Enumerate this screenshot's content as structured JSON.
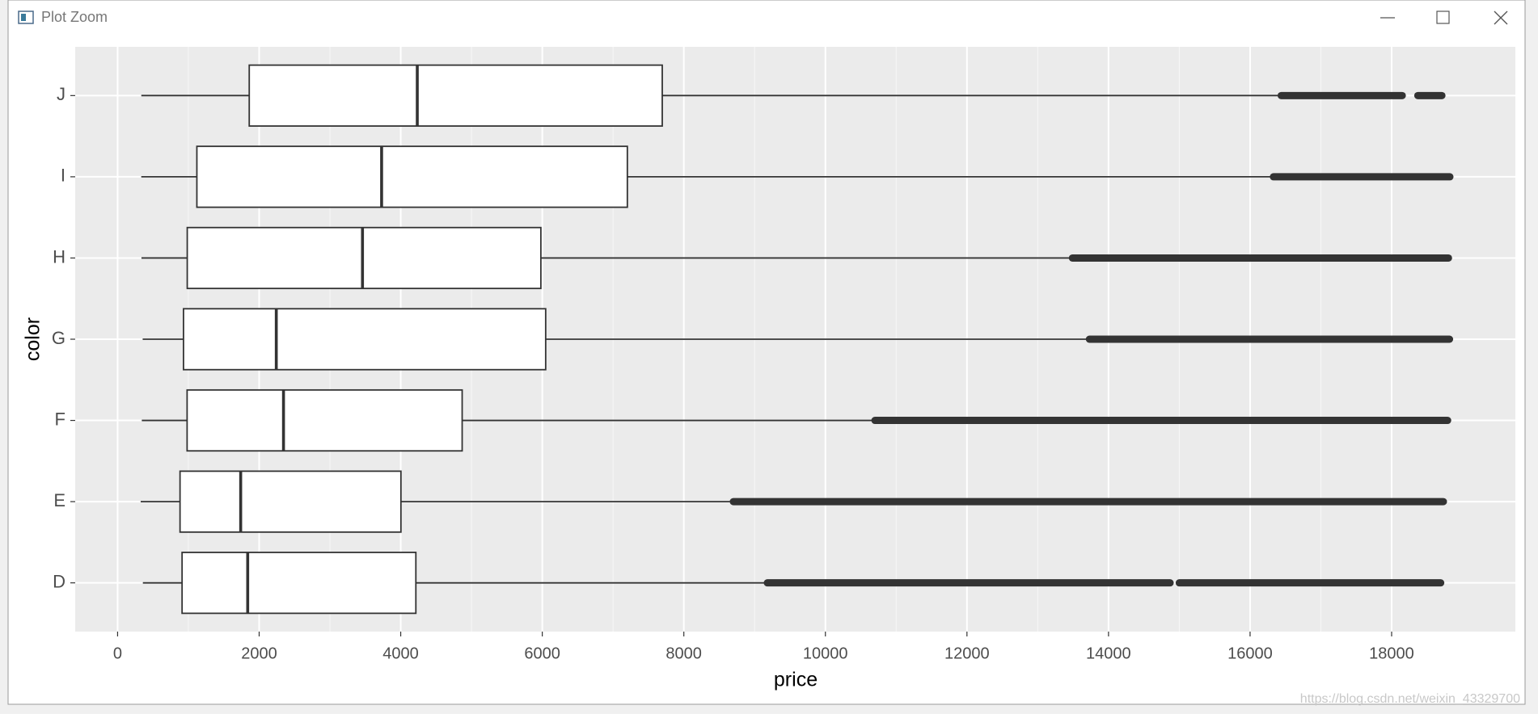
{
  "window": {
    "title": "Plot Zoom"
  },
  "watermark": "https://blog.csdn.net/weixin_43329700",
  "chart_data": {
    "type": "boxplot",
    "orientation": "horizontal",
    "x_label": "price",
    "y_label": "color",
    "categories": [
      "D",
      "E",
      "F",
      "G",
      "H",
      "I",
      "J"
    ],
    "whisker_low": [
      357,
      326,
      342,
      354,
      337,
      334,
      335
    ],
    "q1": [
      911,
      882,
      982,
      931,
      984,
      1120,
      1860
    ],
    "median": [
      1838,
      1739,
      2344,
      2242,
      3460,
      3730,
      4234
    ],
    "q3": [
      4214,
      4003,
      4868,
      6048,
      5980,
      7202,
      7695
    ],
    "whisker_high": [
      9150,
      8650,
      10690,
      13720,
      13470,
      16320,
      16420
    ],
    "outlier_runs": [
      [
        [
          9180,
          14870
        ],
        [
          15000,
          18693
        ]
      ],
      [
        [
          8700,
          18731
        ]
      ],
      [
        [
          10700,
          18791
        ]
      ],
      [
        [
          13730,
          18818
        ]
      ],
      [
        [
          13490,
          18803
        ]
      ],
      [
        [
          16330,
          18823
        ]
      ],
      [
        [
          16440,
          18150
        ],
        [
          18370,
          18710
        ]
      ]
    ],
    "box_fill": "#ffffff",
    "line_color": "#333333",
    "panel_color": "#ebebeb",
    "xlim": [
      -599,
      19748
    ],
    "xticks": [
      0,
      2000,
      4000,
      6000,
      8000,
      10000,
      12000,
      14000,
      16000,
      18000
    ],
    "grid": true
  }
}
